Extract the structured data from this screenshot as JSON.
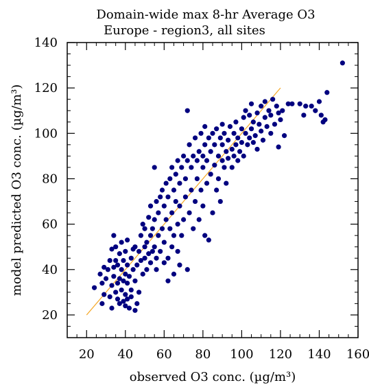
{
  "chart_data": {
    "type": "scatter",
    "title": "Domain-wide max 8-hr Average O3",
    "subtitle": "Europe - region3, all sites",
    "xlabel": "observed O3 conc. (µg/m³)",
    "ylabel": "model predicted O3 conc. (µg/m³)",
    "xlim": [
      10,
      160
    ],
    "ylim": [
      10,
      140
    ],
    "xticks": [
      20,
      40,
      60,
      80,
      100,
      120,
      140,
      160
    ],
    "yticks": [
      20,
      40,
      60,
      80,
      100,
      120,
      140
    ],
    "grid": false,
    "marker_color": "#00007f",
    "reference_line": {
      "x": [
        20,
        120
      ],
      "y": [
        20,
        120
      ],
      "color": "#f5a623"
    },
    "points": [
      [
        24,
        32
      ],
      [
        27,
        38
      ],
      [
        28,
        25
      ],
      [
        28,
        34
      ],
      [
        29,
        29
      ],
      [
        29,
        41
      ],
      [
        30,
        36
      ],
      [
        31,
        40
      ],
      [
        32,
        28
      ],
      [
        32,
        44
      ],
      [
        33,
        23
      ],
      [
        33,
        33
      ],
      [
        33,
        49
      ],
      [
        34,
        37
      ],
      [
        34,
        41
      ],
      [
        34,
        55
      ],
      [
        35,
        30
      ],
      [
        35,
        44
      ],
      [
        35,
        50
      ],
      [
        36,
        27
      ],
      [
        36,
        34
      ],
      [
        36,
        42
      ],
      [
        37,
        25
      ],
      [
        37,
        36
      ],
      [
        37,
        47
      ],
      [
        38,
        31
      ],
      [
        38,
        40
      ],
      [
        38,
        52
      ],
      [
        39,
        26
      ],
      [
        39,
        35
      ],
      [
        39,
        44
      ],
      [
        40,
        24
      ],
      [
        40,
        29
      ],
      [
        40,
        38
      ],
      [
        40,
        48
      ],
      [
        41,
        27
      ],
      [
        41,
        34
      ],
      [
        41,
        42
      ],
      [
        41,
        53
      ],
      [
        42,
        23
      ],
      [
        42,
        37
      ],
      [
        43,
        31
      ],
      [
        43,
        45
      ],
      [
        43,
        28
      ],
      [
        44,
        40
      ],
      [
        44,
        49
      ],
      [
        45,
        22
      ],
      [
        45,
        35
      ],
      [
        45,
        50
      ],
      [
        46,
        25
      ],
      [
        46,
        42
      ],
      [
        47,
        48
      ],
      [
        47,
        30
      ],
      [
        48,
        44
      ],
      [
        48,
        55
      ],
      [
        49,
        38
      ],
      [
        49,
        60
      ],
      [
        50,
        45
      ],
      [
        50,
        50
      ],
      [
        50,
        58
      ],
      [
        51,
        40
      ],
      [
        51,
        52
      ],
      [
        52,
        47
      ],
      [
        52,
        63
      ],
      [
        53,
        43
      ],
      [
        53,
        55
      ],
      [
        53,
        68
      ],
      [
        54,
        48
      ],
      [
        54,
        58
      ],
      [
        55,
        85
      ],
      [
        55,
        62
      ],
      [
        55,
        50
      ],
      [
        56,
        45
      ],
      [
        56,
        70
      ],
      [
        56,
        40
      ],
      [
        57,
        55
      ],
      [
        57,
        65
      ],
      [
        58,
        48
      ],
      [
        58,
        72
      ],
      [
        59,
        58
      ],
      [
        59,
        75
      ],
      [
        60,
        43
      ],
      [
        60,
        52
      ],
      [
        60,
        68
      ],
      [
        61,
        62
      ],
      [
        61,
        78
      ],
      [
        62,
        35
      ],
      [
        62,
        45
      ],
      [
        62,
        72
      ],
      [
        63,
        58
      ],
      [
        63,
        80
      ],
      [
        64,
        50
      ],
      [
        64,
        65
      ],
      [
        64,
        85
      ],
      [
        65,
        38
      ],
      [
        65,
        55
      ],
      [
        65,
        75
      ],
      [
        66,
        70
      ],
      [
        66,
        82
      ],
      [
        67,
        48
      ],
      [
        67,
        60
      ],
      [
        67,
        88
      ],
      [
        68,
        42
      ],
      [
        68,
        68
      ],
      [
        68,
        78
      ],
      [
        69,
        55
      ],
      [
        69,
        85
      ],
      [
        70,
        62
      ],
      [
        70,
        90
      ],
      [
        71,
        72
      ],
      [
        71,
        80
      ],
      [
        72,
        40
      ],
      [
        72,
        110
      ],
      [
        72,
        88
      ],
      [
        73,
        65
      ],
      [
        73,
        95
      ],
      [
        74,
        75
      ],
      [
        74,
        85
      ],
      [
        75,
        58
      ],
      [
        75,
        90
      ],
      [
        76,
        70
      ],
      [
        76,
        98
      ],
      [
        77,
        80
      ],
      [
        77,
        88
      ],
      [
        78,
        62
      ],
      [
        78,
        92
      ],
      [
        79,
        75
      ],
      [
        79,
        100
      ],
      [
        80,
        85
      ],
      [
        80,
        90
      ],
      [
        80,
        68
      ],
      [
        81,
        55
      ],
      [
        81,
        95
      ],
      [
        81,
        103
      ],
      [
        82,
        78
      ],
      [
        82,
        88
      ],
      [
        83,
        53
      ],
      [
        83,
        98
      ],
      [
        84,
        82
      ],
      [
        84,
        92
      ],
      [
        85,
        65
      ],
      [
        85,
        100
      ],
      [
        86,
        86
      ],
      [
        86,
        95
      ],
      [
        87,
        75
      ],
      [
        87,
        102
      ],
      [
        88,
        90
      ],
      [
        88,
        80
      ],
      [
        89,
        98
      ],
      [
        89,
        70
      ],
      [
        90,
        88
      ],
      [
        90,
        95
      ],
      [
        90,
        104
      ],
      [
        91,
        85
      ],
      [
        91,
        100
      ],
      [
        92,
        92
      ],
      [
        92,
        78
      ],
      [
        93,
        97
      ],
      [
        93,
        89
      ],
      [
        94,
        103
      ],
      [
        95,
        93
      ],
      [
        95,
        85
      ],
      [
        96,
        100
      ],
      [
        96,
        90
      ],
      [
        97,
        95
      ],
      [
        97,
        105
      ],
      [
        98,
        88
      ],
      [
        98,
        98
      ],
      [
        99,
        92
      ],
      [
        100,
        102
      ],
      [
        100,
        96
      ],
      [
        101,
        90
      ],
      [
        101,
        107
      ],
      [
        102,
        100
      ],
      [
        102,
        110
      ],
      [
        103,
        95
      ],
      [
        104,
        108
      ],
      [
        104,
        98
      ],
      [
        105,
        102
      ],
      [
        105,
        113
      ],
      [
        106,
        96
      ],
      [
        106,
        105
      ],
      [
        107,
        99
      ],
      [
        108,
        109
      ],
      [
        108,
        93
      ],
      [
        109,
        104
      ],
      [
        110,
        101
      ],
      [
        110,
        112
      ],
      [
        111,
        97
      ],
      [
        112,
        107
      ],
      [
        112,
        114
      ],
      [
        113,
        103
      ],
      [
        114,
        110
      ],
      [
        115,
        100
      ],
      [
        115,
        108
      ],
      [
        116,
        115
      ],
      [
        117,
        104
      ],
      [
        118,
        112
      ],
      [
        119,
        94
      ],
      [
        119,
        109
      ],
      [
        120,
        106
      ],
      [
        121,
        110
      ],
      [
        122,
        99
      ],
      [
        124,
        113
      ],
      [
        126,
        113
      ],
      [
        130,
        113
      ],
      [
        132,
        108
      ],
      [
        133,
        112
      ],
      [
        136,
        112
      ],
      [
        138,
        110
      ],
      [
        140,
        114
      ],
      [
        141,
        108
      ],
      [
        142,
        105
      ],
      [
        143,
        106
      ],
      [
        144,
        118
      ],
      [
        152,
        131
      ]
    ]
  }
}
